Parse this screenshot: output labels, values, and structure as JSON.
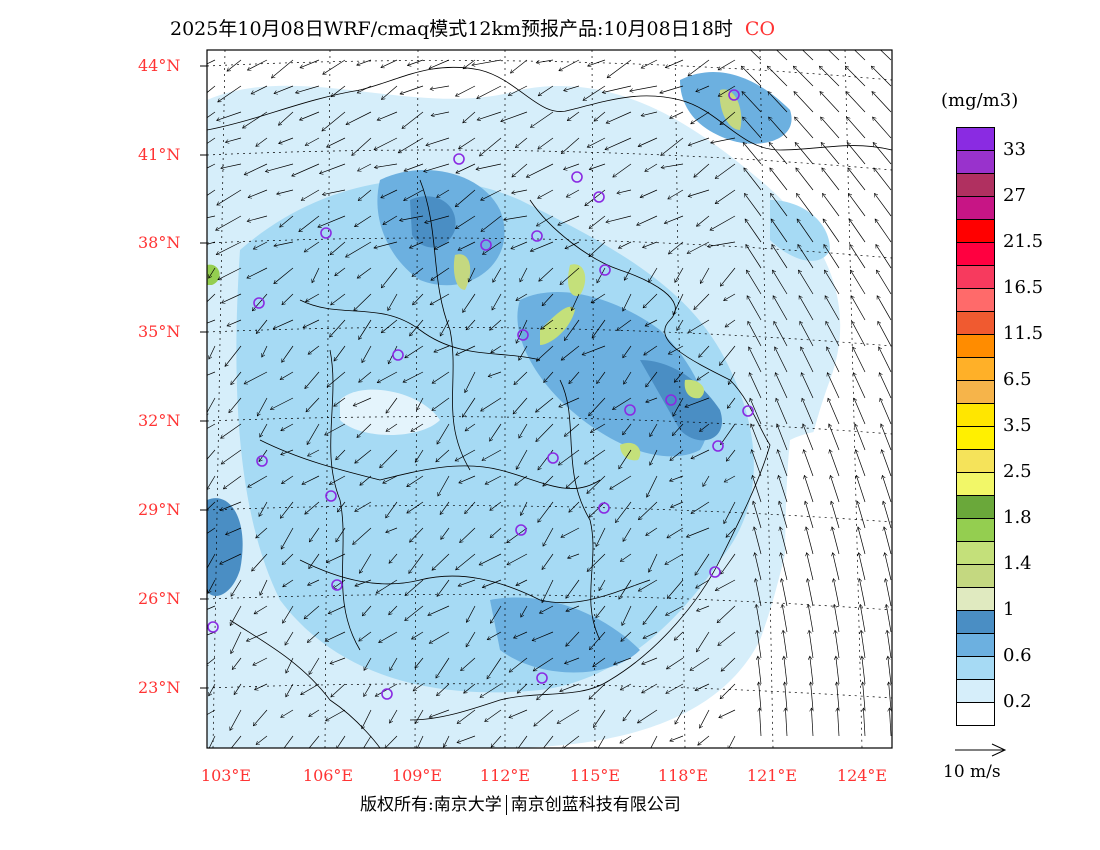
{
  "title": {
    "main": "2025年10月08日WRF/cmaq模式12km预报产品:10月08日18时",
    "species": "CO"
  },
  "axes": {
    "lat_labels": [
      "44°N",
      "41°N",
      "38°N",
      "35°N",
      "32°N",
      "29°N",
      "26°N",
      "23°N"
    ],
    "lon_labels": [
      "103°E",
      "106°E",
      "109°E",
      "112°E",
      "115°E",
      "118°E",
      "121°E",
      "124°E"
    ]
  },
  "colorbar": {
    "unit": "(mg/m3)",
    "colors": [
      "#8a2be2",
      "#9932cc",
      "#b03060",
      "#c71585",
      "#ff0000",
      "#ff0040",
      "#f73a5e",
      "#ff6a6a",
      "#f05a30",
      "#ff8c00",
      "#ffb028",
      "#f6b44a",
      "#ffe600",
      "#fff000",
      "#f5e35a",
      "#f2f768",
      "#6aa83a",
      "#94ce50",
      "#c4e07a",
      "#c4d880",
      "#e0eac0",
      "#4a8ec4",
      "#6cb0e0",
      "#a6daf4",
      "#d6eefa",
      "#ffffff"
    ],
    "labels": [
      "33",
      "27",
      "21.5",
      "16.5",
      "11.5",
      "6.5",
      "3.5",
      "2.5",
      "1.8",
      "1.4",
      "1",
      "0.6",
      "0.2"
    ]
  },
  "vector_legend": {
    "label": "10 m/s"
  },
  "footer": {
    "left": "版权所有:南京大学",
    "right": "南京创蓝科技有限公司"
  }
}
